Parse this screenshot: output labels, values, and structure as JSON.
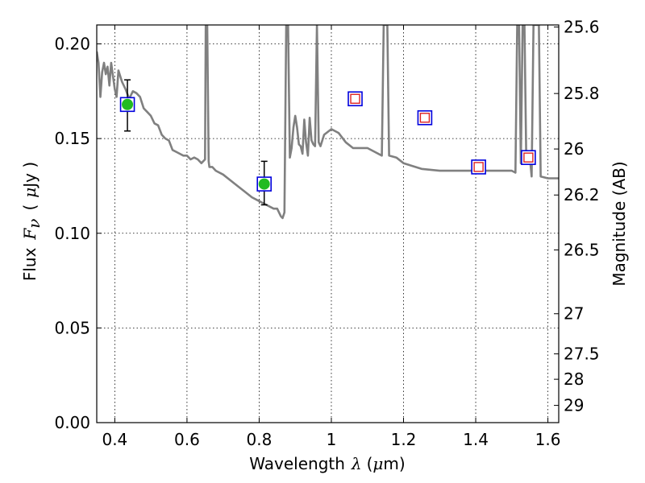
{
  "chart_data": {
    "type": "scatter",
    "xlabel_parts": [
      "Wavelength",
      "λ",
      "(",
      "μ",
      "m)"
    ],
    "ylabel_parts": [
      "Flux",
      "F",
      "ν",
      "(",
      "μ",
      "Jy )"
    ],
    "ylabel_right": "Magnitude (AB)",
    "xlim": [
      0.35,
      1.63
    ],
    "ylim": [
      0.0,
      0.21
    ],
    "grid": true,
    "x_ticks": [
      0.4,
      0.6,
      0.8,
      1.0,
      1.2,
      1.4,
      1.6
    ],
    "x_tick_labels": [
      "0.4",
      "0.6",
      "0.8",
      "1",
      "1.2",
      "1.4",
      "1.6"
    ],
    "y_ticks": [
      0.0,
      0.05,
      0.1,
      0.15,
      0.2
    ],
    "y_tick_labels": [
      "0.00",
      "0.05",
      "0.10",
      "0.15",
      "0.20"
    ],
    "right_ticks": [
      {
        "label": "25.6",
        "flux": 0.2089
      },
      {
        "label": "25.8",
        "flux": 0.1738
      },
      {
        "label": "26",
        "flux": 0.1445
      },
      {
        "label": "26.2",
        "flux": 0.1202
      },
      {
        "label": "26.5",
        "flux": 0.0912
      },
      {
        "label": "27",
        "flux": 0.0575
      },
      {
        "label": "27.5",
        "flux": 0.0363
      },
      {
        "label": "28",
        "flux": 0.0229
      },
      {
        "label": "29",
        "flux": 0.0091
      }
    ],
    "colors": {
      "model": "#808080",
      "detection_fill": "#22bb22",
      "square_outline": "#0000dd",
      "model_photometry": "#dd2222",
      "error_bar": "#000000"
    },
    "model_spectrum": {
      "x": [
        0.35,
        0.355,
        0.36,
        0.365,
        0.37,
        0.375,
        0.38,
        0.385,
        0.39,
        0.395,
        0.4,
        0.405,
        0.41,
        0.42,
        0.43,
        0.44,
        0.45,
        0.46,
        0.47,
        0.48,
        0.49,
        0.5,
        0.51,
        0.52,
        0.53,
        0.54,
        0.55,
        0.56,
        0.57,
        0.58,
        0.59,
        0.6,
        0.61,
        0.62,
        0.63,
        0.64,
        0.65,
        0.652,
        0.656,
        0.66,
        0.662,
        0.67,
        0.68,
        0.7,
        0.72,
        0.74,
        0.76,
        0.78,
        0.8,
        0.82,
        0.84,
        0.85,
        0.86,
        0.865,
        0.87,
        0.875,
        0.88,
        0.885,
        0.89,
        0.895,
        0.9,
        0.905,
        0.91,
        0.915,
        0.92,
        0.925,
        0.93,
        0.935,
        0.94,
        0.945,
        0.95,
        0.955,
        0.96,
        0.965,
        0.97,
        0.98,
        1.0,
        1.02,
        1.04,
        1.06,
        1.08,
        1.1,
        1.12,
        1.14,
        1.145,
        1.15,
        1.155,
        1.16,
        1.18,
        1.2,
        1.25,
        1.3,
        1.35,
        1.4,
        1.45,
        1.5,
        1.51,
        1.515,
        1.52,
        1.525,
        1.53,
        1.535,
        1.54,
        1.545,
        1.55,
        1.555,
        1.56,
        1.565,
        1.57,
        1.575,
        1.58,
        1.6,
        1.63
      ],
      "y": [
        0.196,
        0.19,
        0.172,
        0.185,
        0.19,
        0.184,
        0.188,
        0.178,
        0.19,
        0.183,
        0.176,
        0.172,
        0.186,
        0.18,
        0.176,
        0.171,
        0.175,
        0.174,
        0.172,
        0.166,
        0.164,
        0.162,
        0.158,
        0.157,
        0.152,
        0.15,
        0.149,
        0.144,
        0.143,
        0.142,
        0.141,
        0.141,
        0.139,
        0.14,
        0.139,
        0.137,
        0.139,
        0.21,
        0.21,
        0.138,
        0.135,
        0.135,
        0.133,
        0.131,
        0.128,
        0.125,
        0.122,
        0.119,
        0.117,
        0.115,
        0.113,
        0.113,
        0.109,
        0.108,
        0.111,
        0.21,
        0.21,
        0.14,
        0.145,
        0.156,
        0.162,
        0.156,
        0.147,
        0.146,
        0.142,
        0.16,
        0.148,
        0.141,
        0.161,
        0.149,
        0.147,
        0.146,
        0.21,
        0.148,
        0.146,
        0.152,
        0.155,
        0.153,
        0.148,
        0.145,
        0.145,
        0.145,
        0.143,
        0.141,
        0.21,
        0.21,
        0.21,
        0.141,
        0.14,
        0.137,
        0.134,
        0.133,
        0.133,
        0.133,
        0.133,
        0.133,
        0.132,
        0.21,
        0.21,
        0.137,
        0.21,
        0.21,
        0.14,
        0.14,
        0.14,
        0.13,
        0.21,
        0.21,
        0.21,
        0.21,
        0.13,
        0.129,
        0.129
      ]
    },
    "detections": [
      {
        "x": 0.435,
        "y": 0.168,
        "err_low": 0.154,
        "err_high": 0.181
      },
      {
        "x": 0.814,
        "y": 0.126,
        "err_low": 0.115,
        "err_high": 0.138
      }
    ],
    "model_photometry_points": [
      {
        "x": 0.435,
        "y": 0.168
      },
      {
        "x": 0.814,
        "y": 0.126
      },
      {
        "x": 1.066,
        "y": 0.171
      },
      {
        "x": 1.259,
        "y": 0.161
      },
      {
        "x": 1.408,
        "y": 0.135
      },
      {
        "x": 1.546,
        "y": 0.14
      }
    ]
  }
}
